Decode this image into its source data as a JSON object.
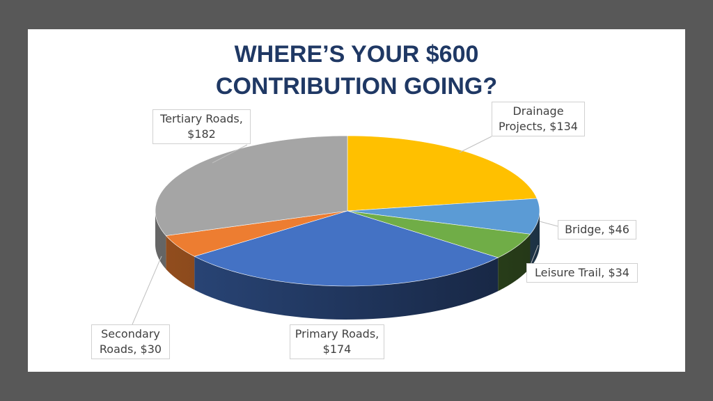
{
  "slide": {
    "title_line1": "WHERE’S YOUR $600",
    "title_line2": "CONTRIBUTION GOING?"
  },
  "chart_data": {
    "type": "pie",
    "title": "WHERE’S YOUR $600 CONTRIBUTION GOING?",
    "three_d": true,
    "slices": [
      {
        "name": "Drainage Projects",
        "value": 134,
        "color": "#ffc000",
        "label_line1": "Drainage",
        "label_line2": "Projects,  $134"
      },
      {
        "name": "Bridge",
        "value": 46,
        "color": "#5b9bd5",
        "label_line1": "Bridge,  $46",
        "label_line2": ""
      },
      {
        "name": "Leisure Trail",
        "value": 34,
        "color": "#70ad47",
        "label_line1": "Leisure Trail,  $34",
        "label_line2": ""
      },
      {
        "name": "Primary Roads",
        "value": 174,
        "color": "#4472c4",
        "label_line1": "Primary Roads,",
        "label_line2": "$174"
      },
      {
        "name": "Secondary Roads",
        "value": 30,
        "color": "#ed7d31",
        "label_line1": "Secondary",
        "label_line2": "Roads,  $30"
      },
      {
        "name": "Tertiary Roads",
        "value": 182,
        "color": "#a5a5a5",
        "label_line1": "Tertiary Roads,",
        "label_line2": "$182"
      }
    ]
  }
}
